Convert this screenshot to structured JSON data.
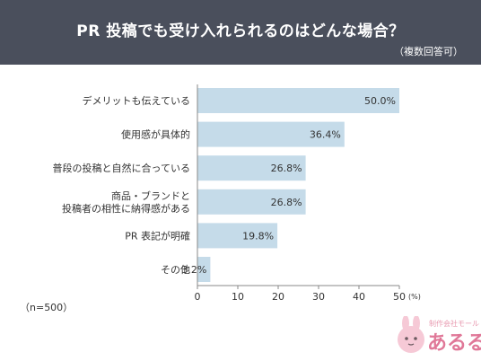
{
  "header": {
    "title": "PR 投稿でも受け入れられるのはどんな場合？",
    "note": "（複数回答可）"
  },
  "sample_size": "（n=500）",
  "logo": {
    "small_text": "制作会社モール",
    "main_text": "あるる"
  },
  "colors": {
    "header_bg": "#4a4f5c",
    "bar": "#c5dbe9",
    "axis": "#888888",
    "logo": "#e07898"
  },
  "chart_data": {
    "type": "bar",
    "orientation": "horizontal",
    "categories": [
      [
        "デメリットも伝えている"
      ],
      [
        "使用感が具体的"
      ],
      [
        "普段の投稿と自然に合っている"
      ],
      [
        "商品・ブランドと",
        "投稿者の相性に納得感がある"
      ],
      [
        "PR 表記が明確"
      ],
      [
        "その他"
      ]
    ],
    "values": [
      50.0,
      36.4,
      26.8,
      26.8,
      19.8,
      3.2
    ],
    "value_labels": [
      "50.0%",
      "36.4%",
      "26.8%",
      "26.8%",
      "19.8%",
      "3.2%"
    ],
    "xlim": [
      0,
      50
    ],
    "xticks": [
      0,
      10,
      20,
      30,
      40,
      50
    ],
    "xunit": "(%)"
  }
}
